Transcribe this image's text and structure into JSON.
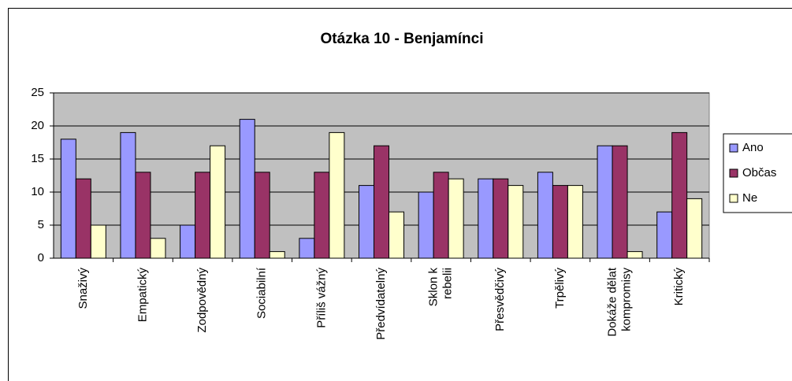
{
  "chart_data": {
    "type": "bar",
    "title": "Otázka 10 - Benjamínci",
    "categories": [
      "Snaživý",
      "Empatický",
      "Zodpovědný",
      "Sociabilní",
      "Příliš vážný",
      "Předvídatelný",
      "Sklon k rebelii",
      "Přesvědčivý",
      "Trpělivý",
      "Dokáže dělat kompromisy",
      "Kritický"
    ],
    "series": [
      {
        "name": "Ano",
        "color": "#9999ff",
        "values": [
          18,
          19,
          5,
          21,
          3,
          11,
          10,
          12,
          13,
          17,
          7
        ]
      },
      {
        "name": "Občas",
        "color": "#993366",
        "values": [
          12,
          13,
          13,
          13,
          13,
          17,
          13,
          12,
          11,
          17,
          19
        ]
      },
      {
        "name": "Ne",
        "color": "#ffffcc",
        "values": [
          5,
          3,
          17,
          1,
          19,
          7,
          12,
          11,
          11,
          1,
          9
        ]
      }
    ],
    "ylim": [
      0,
      25
    ],
    "yticks": [
      0,
      5,
      10,
      15,
      20,
      25
    ],
    "grid": true,
    "legend": "right"
  }
}
